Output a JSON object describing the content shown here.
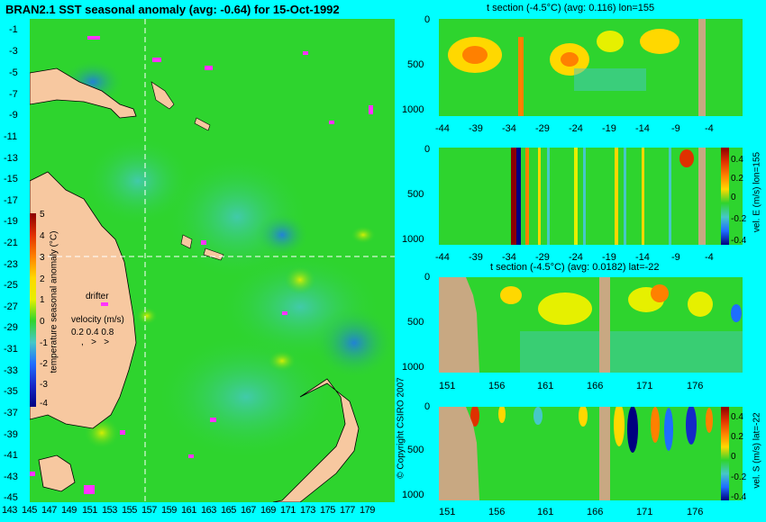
{
  "map": {
    "title": "BRAN2.1 SST seasonal anomaly (avg: -0.64) for 15-Oct-1992",
    "lat_ticks": [
      "-1",
      "-3",
      "-5",
      "-7",
      "-9",
      "-11",
      "-13",
      "-15",
      "-17",
      "-19",
      "-21",
      "-23",
      "-25",
      "-27",
      "-29",
      "-31",
      "-33",
      "-35",
      "-37",
      "-39",
      "-41",
      "-43",
      "-45"
    ],
    "lon_ticks": [
      "143",
      "145",
      "147",
      "149",
      "151",
      "153",
      "155",
      "157",
      "159",
      "161",
      "163",
      "165",
      "167",
      "169",
      "171",
      "173",
      "175",
      "177",
      "179"
    ],
    "colorbar_label": "temperature seasonal anomaly (°C)",
    "colorbar_ticks": [
      "5",
      "4",
      "3",
      "2",
      "1",
      "0",
      "-1",
      "-2",
      "-3",
      "-4"
    ],
    "drifter_label": "drifter",
    "velocity_label": "velocity (m/s)",
    "velocity_scale": "0.2 0.4 0.8",
    "copyright": "© Copyright CSIRO 2007",
    "colors": {
      "land": "#f7c8a0",
      "ocean": "#2ed42e",
      "drifter": "#ff33ff",
      "background": "#00ffff"
    }
  },
  "panels": [
    {
      "id": "t-lon",
      "title": "t section (-4.5°C) (avg: 0.116) lon=155",
      "y_ticks": [
        "0",
        "500",
        "1000"
      ],
      "x_ticks": [
        "-44",
        "-39",
        "-34",
        "-29",
        "-24",
        "-19",
        "-14",
        "-9",
        "-4"
      ]
    },
    {
      "id": "v-lon",
      "title": "",
      "y_ticks": [
        "0",
        "500",
        "1000"
      ],
      "x_ticks": [
        "-44",
        "-39",
        "-34",
        "-29",
        "-24",
        "-19",
        "-14",
        "-9",
        "-4"
      ],
      "colorbar_label": "vel. E (m/s) lon=155",
      "colorbar_ticks": [
        "0.4",
        "0.2",
        "0",
        "-0.2",
        "-0.4"
      ]
    },
    {
      "id": "t-lat",
      "title": "t section (-4.5°C) (avg: 0.0182) lat=-22",
      "y_ticks": [
        "0",
        "500",
        "1000"
      ],
      "x_ticks": [
        "151",
        "156",
        "161",
        "166",
        "171",
        "176"
      ]
    },
    {
      "id": "v-lat",
      "title": "",
      "y_ticks": [
        "0",
        "500",
        "1000"
      ],
      "x_ticks": [
        "151",
        "156",
        "161",
        "166",
        "171",
        "176"
      ],
      "colorbar_label": "vel. S (m/s) lat=-22",
      "colorbar_ticks": [
        "0.4",
        "0.2",
        "0",
        "-0.2",
        "-0.4"
      ]
    }
  ],
  "chart_data": [
    {
      "type": "heatmap",
      "title": "BRAN2.1 SST seasonal anomaly (avg: -0.64) for 15-Oct-1992",
      "xlabel": "",
      "ylabel": "",
      "x_range": [
        143,
        180
      ],
      "y_range": [
        -45,
        0
      ],
      "color_range": [
        -4,
        5
      ],
      "colorbar_label": "temperature seasonal anomaly (°C)"
    },
    {
      "type": "heatmap",
      "title": "t section (-4.5°C) (avg: 0.116) lon=155",
      "x_range": [
        -46,
        0
      ],
      "y_range": [
        1050,
        0
      ]
    },
    {
      "type": "heatmap",
      "title": "",
      "x_range": [
        -46,
        0
      ],
      "y_range": [
        1050,
        0
      ],
      "color_range": [
        -0.4,
        0.4
      ],
      "colorbar_label": "vel. E (m/s) lon=155"
    },
    {
      "type": "heatmap",
      "title": "t section (-4.5°C) (avg: 0.0182) lat=-22",
      "x_range": [
        149,
        180
      ],
      "y_range": [
        1050,
        0
      ]
    },
    {
      "type": "heatmap",
      "title": "",
      "x_range": [
        149,
        180
      ],
      "y_range": [
        1050,
        0
      ],
      "color_range": [
        -0.4,
        0.4
      ],
      "colorbar_label": "vel. S (m/s) lat=-22"
    }
  ]
}
